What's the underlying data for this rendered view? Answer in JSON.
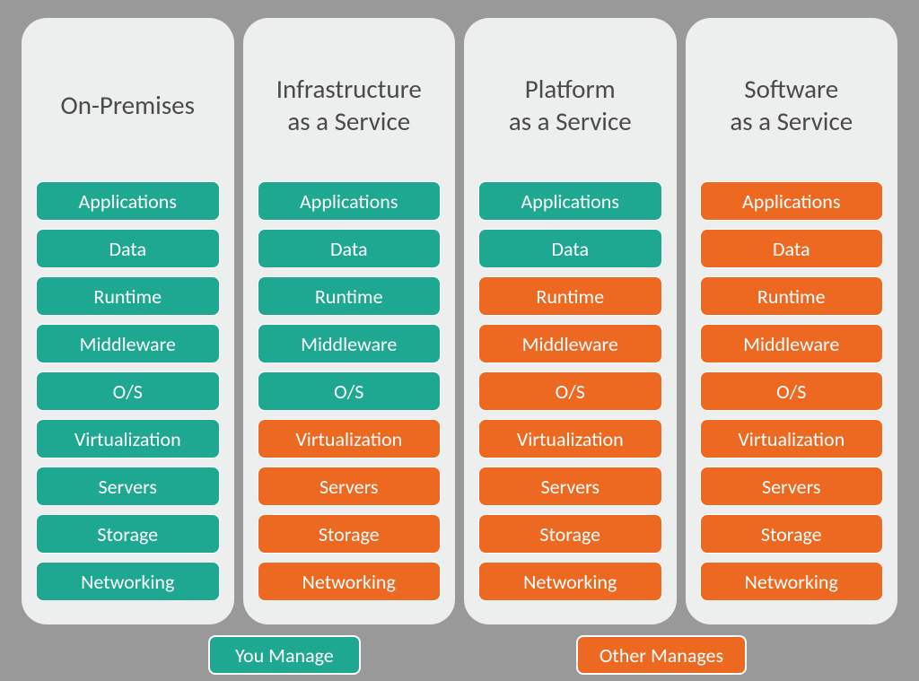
{
  "type": "infographic",
  "background_color": "#999999",
  "panel_background": "#edeeee",
  "panel_border_radius": 28,
  "colors": {
    "you_manage": "#1ea791",
    "other_manages": "#ed6820",
    "header_text": "#4a4a4a",
    "layer_text": "#ffffff",
    "layer_border": "#ffffff"
  },
  "header_fontsize": 29,
  "layer_fontsize": 22,
  "columns": [
    {
      "title": "On-Premises",
      "layers": [
        {
          "label": "Applications",
          "managed_by": "you"
        },
        {
          "label": "Data",
          "managed_by": "you"
        },
        {
          "label": "Runtime",
          "managed_by": "you"
        },
        {
          "label": "Middleware",
          "managed_by": "you"
        },
        {
          "label": "O/S",
          "managed_by": "you"
        },
        {
          "label": "Virtualization",
          "managed_by": "you"
        },
        {
          "label": "Servers",
          "managed_by": "you"
        },
        {
          "label": "Storage",
          "managed_by": "you"
        },
        {
          "label": "Networking",
          "managed_by": "you"
        }
      ]
    },
    {
      "title": "Infrastructure\nas a Service",
      "layers": [
        {
          "label": "Applications",
          "managed_by": "you"
        },
        {
          "label": "Data",
          "managed_by": "you"
        },
        {
          "label": "Runtime",
          "managed_by": "you"
        },
        {
          "label": "Middleware",
          "managed_by": "you"
        },
        {
          "label": "O/S",
          "managed_by": "you"
        },
        {
          "label": "Virtualization",
          "managed_by": "other"
        },
        {
          "label": "Servers",
          "managed_by": "other"
        },
        {
          "label": "Storage",
          "managed_by": "other"
        },
        {
          "label": "Networking",
          "managed_by": "other"
        }
      ]
    },
    {
      "title": "Platform\nas a Service",
      "layers": [
        {
          "label": "Applications",
          "managed_by": "you"
        },
        {
          "label": "Data",
          "managed_by": "you"
        },
        {
          "label": "Runtime",
          "managed_by": "other"
        },
        {
          "label": "Middleware",
          "managed_by": "other"
        },
        {
          "label": "O/S",
          "managed_by": "other"
        },
        {
          "label": "Virtualization",
          "managed_by": "other"
        },
        {
          "label": "Servers",
          "managed_by": "other"
        },
        {
          "label": "Storage",
          "managed_by": "other"
        },
        {
          "label": "Networking",
          "managed_by": "other"
        }
      ]
    },
    {
      "title": "Software\nas a Service",
      "layers": [
        {
          "label": "Applications",
          "managed_by": "other"
        },
        {
          "label": "Data",
          "managed_by": "other"
        },
        {
          "label": "Runtime",
          "managed_by": "other"
        },
        {
          "label": "Middleware",
          "managed_by": "other"
        },
        {
          "label": "O/S",
          "managed_by": "other"
        },
        {
          "label": "Virtualization",
          "managed_by": "other"
        },
        {
          "label": "Servers",
          "managed_by": "other"
        },
        {
          "label": "Storage",
          "managed_by": "other"
        },
        {
          "label": "Networking",
          "managed_by": "other"
        }
      ]
    }
  ],
  "legend": [
    {
      "label": "You Manage",
      "color_key": "you_manage"
    },
    {
      "label": "Other Manages",
      "color_key": "other_manages"
    }
  ]
}
